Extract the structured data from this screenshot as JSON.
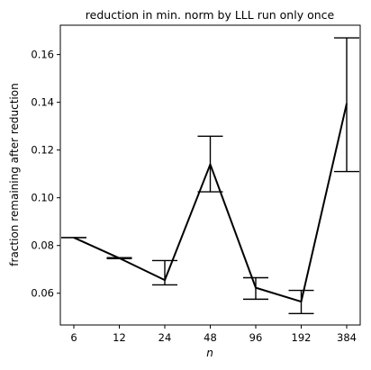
{
  "chart_data": {
    "type": "line",
    "title": "reduction in min. norm by LLL run only once",
    "xlabel": "n",
    "ylabel": "fraction remaining after reduction",
    "categories": [
      "6",
      "12",
      "24",
      "48",
      "96",
      "192",
      "384"
    ],
    "series": [
      {
        "values": [
          0.0833,
          0.0747,
          0.0655,
          0.114,
          0.0623,
          0.0565,
          0.1395
        ],
        "err_low": [
          0.0833,
          0.0745,
          0.0635,
          0.1025,
          0.0575,
          0.0515,
          0.111
        ],
        "err_high": [
          0.0833,
          0.0749,
          0.0737,
          0.1258,
          0.0665,
          0.0612,
          0.167
        ],
        "color": "#000000"
      }
    ],
    "yticks": [
      0.06,
      0.08,
      0.1,
      0.12,
      0.14,
      0.16
    ],
    "ytick_labels": [
      "0.06",
      "0.08",
      "0.10",
      "0.12",
      "0.14",
      "0.16"
    ],
    "ylim": [
      0.0467,
      0.1723
    ],
    "grid": false
  }
}
